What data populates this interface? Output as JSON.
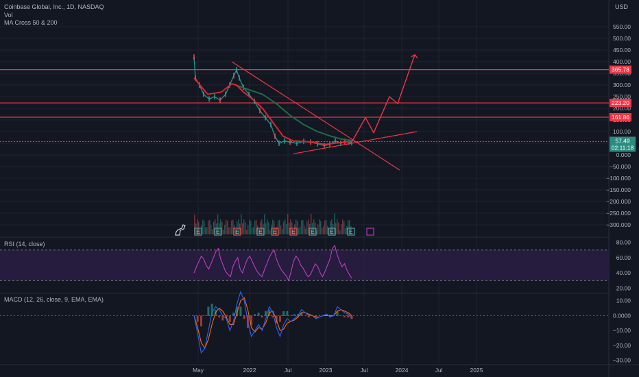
{
  "header": {
    "title": "Coinbase Global, Inc., 1D, NASDAQ",
    "vol_label": "Vol",
    "ma_label": "MA Cross 50 & 200",
    "currency": "USD"
  },
  "rsi": {
    "label": "RSI (14, close)"
  },
  "macd": {
    "label": "MACD (12, 26, close, 9, EMA, EMA)"
  },
  "colors": {
    "background": "#131722",
    "grid": "#1f2330",
    "price_line_red": "#f23645",
    "ma50": "#e0242f",
    "ma200": "#1f6b4a",
    "candle_up": "#26a69a",
    "candle_down": "#ef5350",
    "rsi_line": "#c13ec4",
    "rsi_band": "#2a1d42",
    "macd_line": "#2962ff",
    "signal_line": "#ff6d00",
    "current_tag": "#2a8c80",
    "level_tag": "#f23645",
    "event_earnings": "#5b9c96",
    "event_dividend": "#e0554f",
    "event_future": "#b23aba"
  },
  "icons": {
    "logo": "dinosaur-icon",
    "event": "earnings-e-icon"
  },
  "chart_data": [
    {
      "type": "line",
      "name": "price-panel",
      "x_tick_labels": [
        "May",
        "2022",
        "Jul",
        "2023",
        "Jul",
        "2024",
        "Jul",
        "2025"
      ],
      "y_tick_labels": [
        "550.00",
        "500.00",
        "450.00",
        "400.00",
        "350.00",
        "300.00",
        "250.00",
        "200.00",
        "150.00",
        "100.00",
        "50.00",
        "0.000",
        "−50.000",
        "−100.000",
        "−150.000",
        "−200.000",
        "−250.000",
        "−300.000"
      ],
      "ylim": [
        -310,
        560
      ],
      "current_price": {
        "value": "57.49",
        "countdown": "02:11:18"
      },
      "horizontal_levels": [
        {
          "value": 365.78,
          "label": "365.78"
        },
        {
          "value": 223.2,
          "label": "223.20"
        },
        {
          "value": 161.86,
          "label": "161.86"
        }
      ],
      "price_path": [
        [
          0,
          420
        ],
        [
          2,
          330
        ],
        [
          8,
          300
        ],
        [
          14,
          260
        ],
        [
          22,
          240
        ],
        [
          30,
          250
        ],
        [
          38,
          235
        ],
        [
          46,
          260
        ],
        [
          52,
          300
        ],
        [
          58,
          340
        ],
        [
          62,
          365
        ],
        [
          66,
          330
        ],
        [
          72,
          290
        ],
        [
          80,
          260
        ],
        [
          88,
          230
        ],
        [
          96,
          190
        ],
        [
          104,
          160
        ],
        [
          112,
          130
        ],
        [
          118,
          80
        ],
        [
          124,
          50
        ],
        [
          132,
          60
        ],
        [
          140,
          55
        ],
        [
          150,
          50
        ],
        [
          160,
          58
        ],
        [
          170,
          55
        ],
        [
          180,
          48
        ],
        [
          190,
          40
        ],
        [
          198,
          45
        ],
        [
          206,
          60
        ],
        [
          214,
          50
        ],
        [
          220,
          58
        ],
        [
          226,
          55
        ],
        [
          230,
          52
        ]
      ],
      "ma50": [
        [
          0,
          330
        ],
        [
          20,
          260
        ],
        [
          40,
          270
        ],
        [
          55,
          305
        ],
        [
          62,
          300
        ],
        [
          72,
          270
        ],
        [
          85,
          240
        ],
        [
          100,
          200
        ],
        [
          115,
          140
        ],
        [
          130,
          80
        ],
        [
          145,
          60
        ],
        [
          160,
          58
        ],
        [
          175,
          54
        ],
        [
          190,
          45
        ],
        [
          205,
          50
        ],
        [
          220,
          55
        ],
        [
          230,
          57
        ]
      ],
      "ma200": [
        [
          60,
          300
        ],
        [
          80,
          280
        ],
        [
          100,
          260
        ],
        [
          120,
          220
        ],
        [
          140,
          170
        ],
        [
          160,
          130
        ],
        [
          180,
          100
        ],
        [
          200,
          80
        ],
        [
          215,
          68
        ],
        [
          230,
          62
        ]
      ],
      "projection": [
        [
          230,
          55
        ],
        [
          250,
          160
        ],
        [
          262,
          95
        ],
        [
          285,
          250
        ],
        [
          297,
          220
        ],
        [
          322,
          430
        ]
      ],
      "trendlines": [
        {
          "from": [
            55,
            400
          ],
          "to": [
            300,
            -65
          ]
        },
        {
          "from": [
            145,
            5
          ],
          "to": [
            325,
            100
          ]
        }
      ],
      "event_markers": [
        "E",
        "E",
        "E",
        "E",
        "E",
        "E",
        "E",
        "E",
        "E"
      ]
    },
    {
      "type": "line",
      "name": "rsi-panel",
      "y_tick_labels": [
        "80.00",
        "60.00",
        "40.00",
        "20.00"
      ],
      "ylim": [
        15,
        85
      ],
      "bands": [
        70,
        30
      ],
      "values": [
        40,
        48,
        55,
        62,
        58,
        50,
        45,
        52,
        60,
        68,
        72,
        58,
        50,
        42,
        38,
        35,
        48,
        55,
        60,
        45,
        40,
        50,
        58,
        62,
        55,
        48,
        42,
        38,
        35,
        44,
        52,
        60,
        66,
        70,
        58,
        50,
        44,
        40,
        36,
        30,
        42,
        55,
        62,
        58,
        50,
        46,
        40,
        35,
        38,
        45,
        52,
        48,
        40,
        35,
        42,
        50,
        58,
        72,
        76,
        64,
        55,
        48,
        52,
        44,
        38,
        33
      ]
    },
    {
      "type": "line",
      "name": "macd-panel",
      "y_tick_labels": [
        "10.00",
        "0.0000",
        "−10.00",
        "−20.00",
        "−30.00"
      ],
      "ylim": [
        -32,
        14
      ],
      "macd": [
        0,
        -12,
        -25,
        -22,
        -10,
        2,
        6,
        4,
        0,
        -2,
        -10,
        -4,
        8,
        16,
        10,
        -4,
        -14,
        -10,
        -6,
        -10,
        -2,
        6,
        2,
        -8,
        -14,
        -6,
        -2,
        -4,
        -2,
        0,
        4,
        2,
        0,
        0,
        -2,
        -1,
        0,
        1,
        -1,
        0,
        6,
        4,
        2,
        1,
        -2
      ],
      "signal": [
        0,
        -8,
        -18,
        -22,
        -16,
        -6,
        2,
        5,
        3,
        -1,
        -6,
        -6,
        2,
        10,
        12,
        4,
        -8,
        -11,
        -8,
        -9,
        -5,
        2,
        3,
        -3,
        -10,
        -9,
        -5,
        -4,
        -3,
        -1,
        2,
        2,
        1,
        0,
        -1,
        -1,
        0,
        0,
        0,
        0,
        3,
        4,
        3,
        2,
        0
      ]
    }
  ]
}
